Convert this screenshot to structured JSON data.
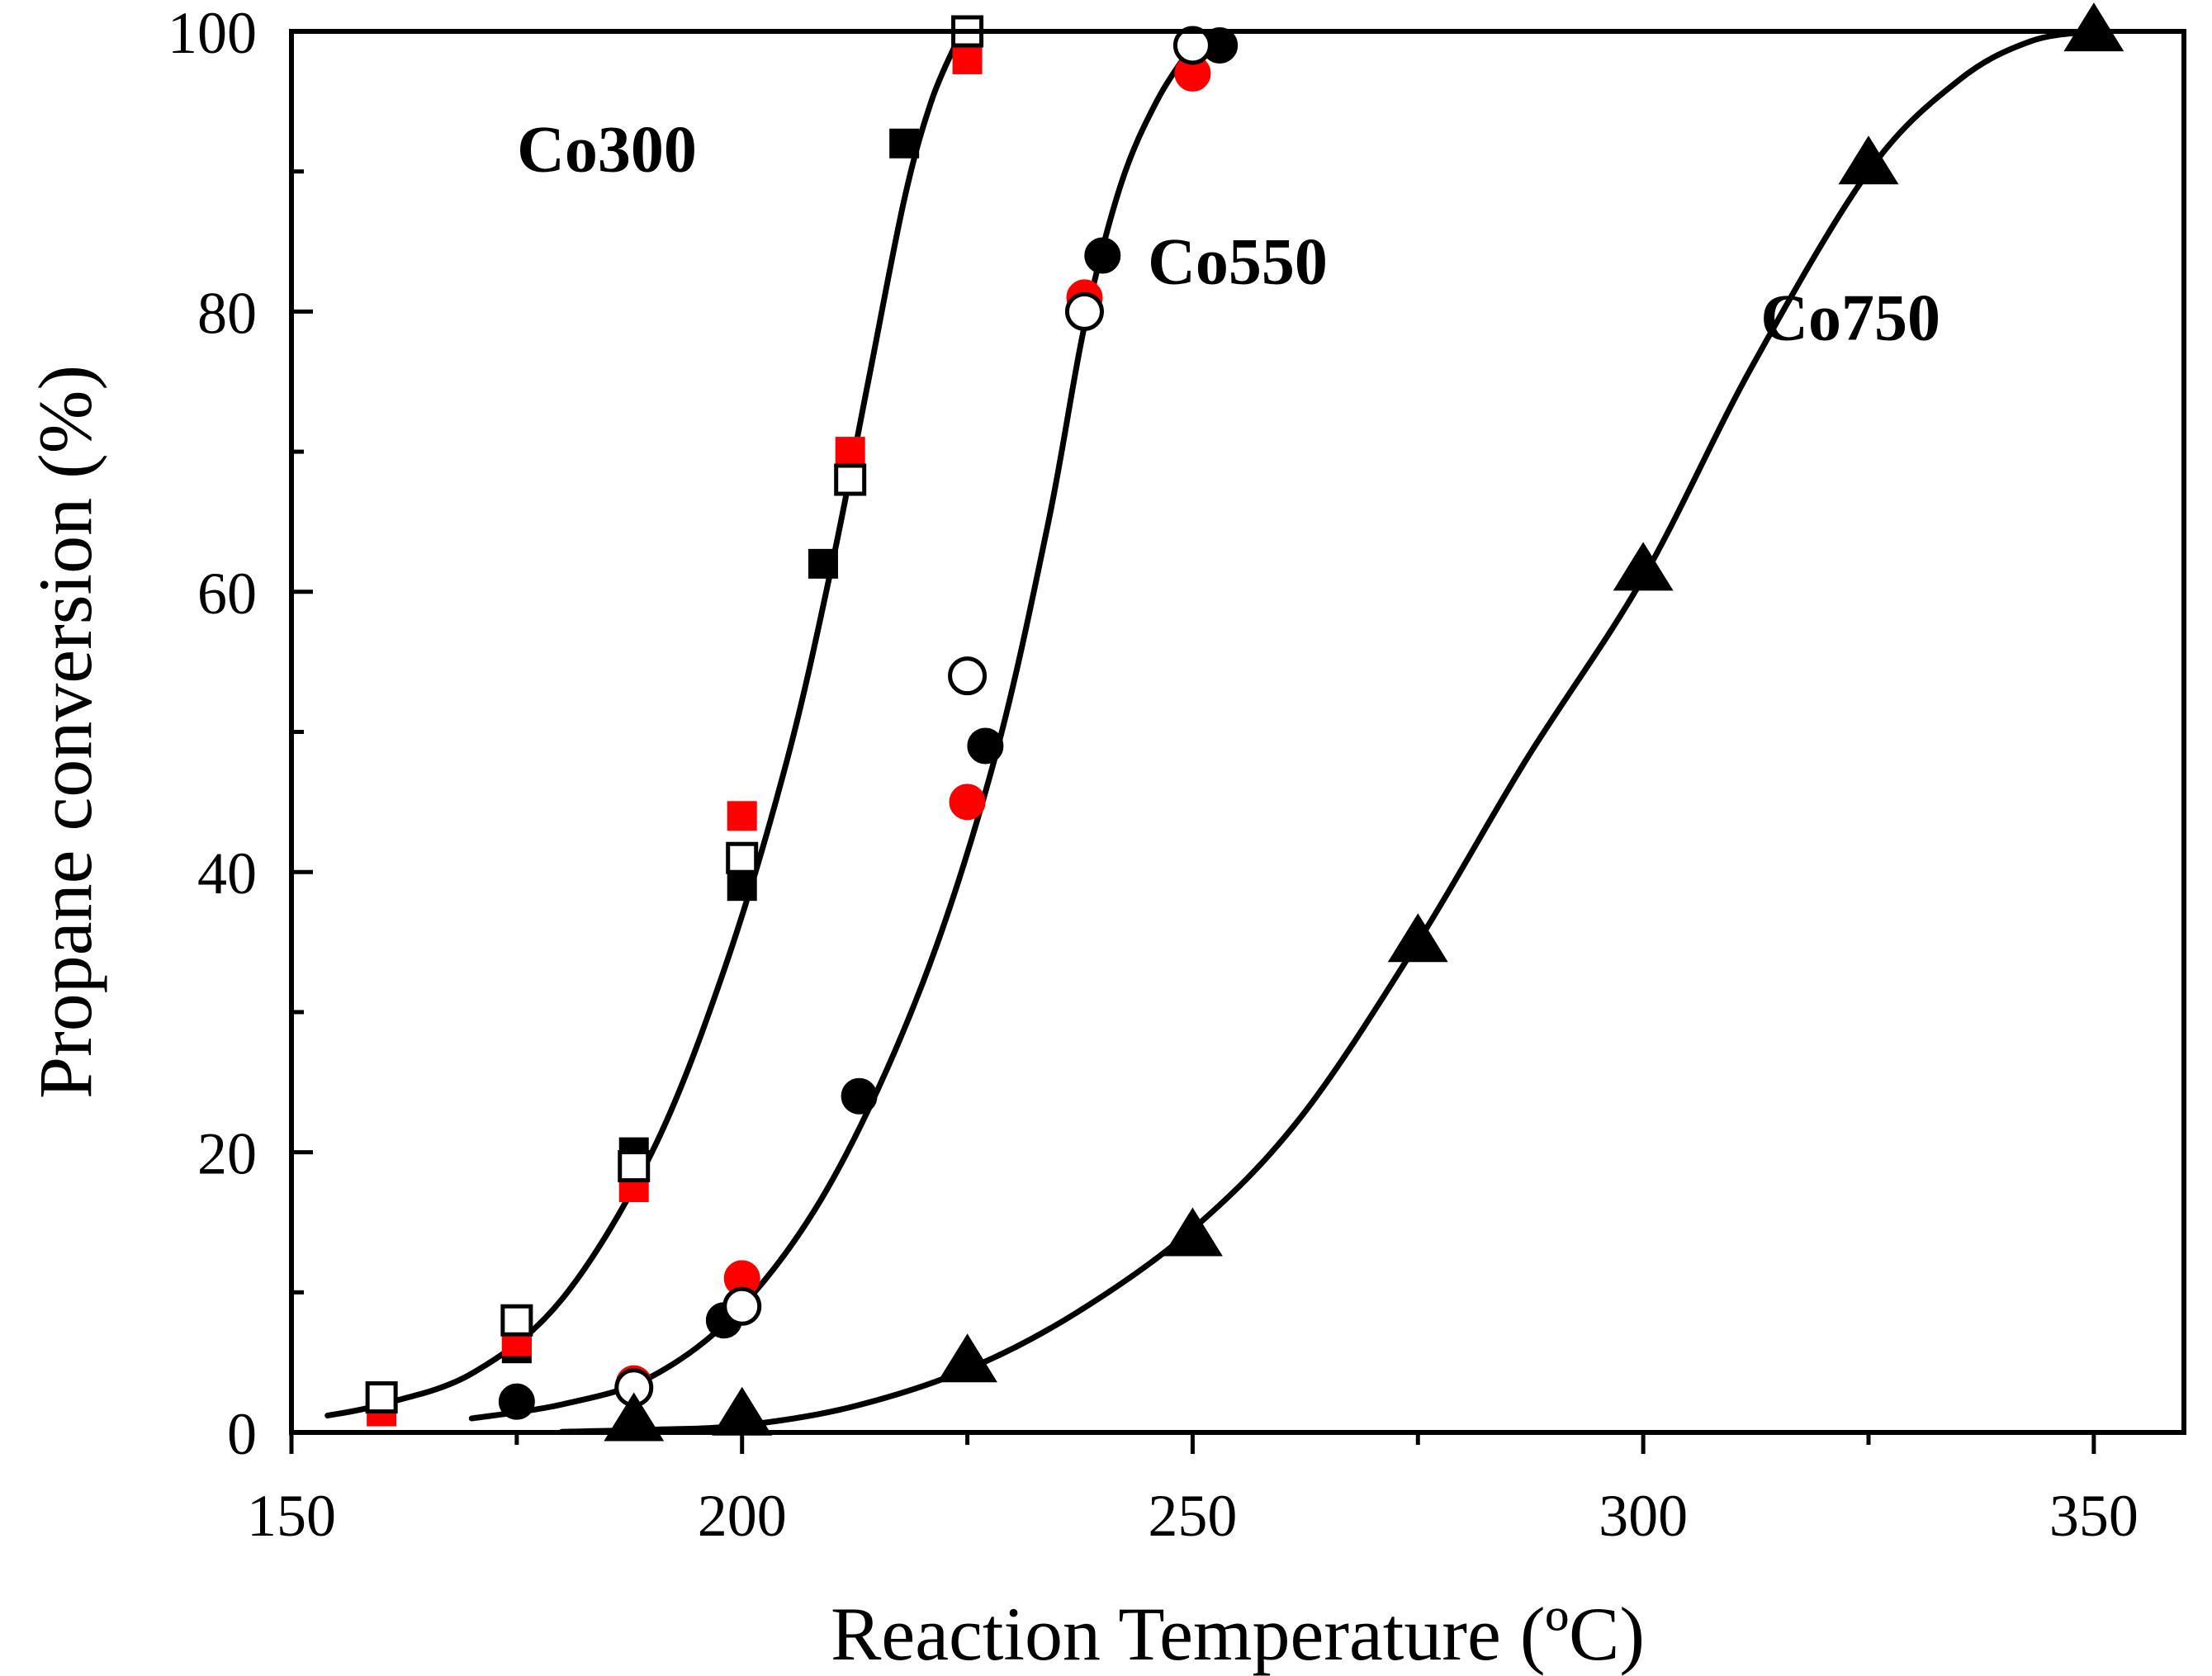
{
  "chart_data": {
    "type": "scatter",
    "title": "",
    "xlabel": "Reaction Temperature (ºC)",
    "ylabel": "Propane conversion (%)",
    "xlim": [
      150,
      360
    ],
    "ylim": [
      0,
      100
    ],
    "x_ticks": [
      150,
      200,
      250,
      300,
      350
    ],
    "y_ticks": [
      0,
      20,
      40,
      60,
      80,
      100
    ],
    "x_minor_ticks": [
      175,
      225,
      275,
      325
    ],
    "y_minor_ticks": [
      10,
      30,
      50,
      70,
      90
    ],
    "grid": false,
    "colors": {
      "black": "#000000",
      "red": "#ff0000",
      "white": "#ffffff"
    },
    "series_labels": [
      {
        "text": "Co300",
        "x": 185,
        "y": 90
      },
      {
        "text": "Co550",
        "x": 255,
        "y": 82
      },
      {
        "text": "Co750",
        "x": 323,
        "y": 78
      }
    ],
    "series": [
      {
        "name": "Co300 (filled black square)",
        "marker": "square",
        "fill": "#000000",
        "stroke": "#000000",
        "points": [
          [
            175,
            6
          ],
          [
            188,
            20
          ],
          [
            200,
            39
          ],
          [
            209,
            62
          ],
          [
            218,
            92
          ]
        ]
      },
      {
        "name": "Co300 (red square)",
        "marker": "square",
        "fill": "#ff0000",
        "stroke": "#ff0000",
        "points": [
          [
            160,
            1.5
          ],
          [
            175,
            6.5
          ],
          [
            188,
            17.5
          ],
          [
            200,
            44
          ],
          [
            212,
            70
          ],
          [
            225,
            98
          ]
        ]
      },
      {
        "name": "Co300 (open square)",
        "marker": "square",
        "fill": "#ffffff",
        "stroke": "#000000",
        "points": [
          [
            160,
            2.5
          ],
          [
            175,
            8
          ],
          [
            188,
            19
          ],
          [
            200,
            41
          ],
          [
            212,
            68
          ],
          [
            225,
            100
          ]
        ]
      },
      {
        "name": "Co550 (filled black circle)",
        "marker": "circle",
        "fill": "#000000",
        "stroke": "#000000",
        "points": [
          [
            175,
            2.2
          ],
          [
            198,
            8
          ],
          [
            213,
            24
          ],
          [
            227,
            49
          ],
          [
            240,
            84
          ],
          [
            253,
            99
          ]
        ]
      },
      {
        "name": "Co550 (red circle)",
        "marker": "circle",
        "fill": "#ff0000",
        "stroke": "#ff0000",
        "points": [
          [
            188,
            3.5
          ],
          [
            200,
            11
          ],
          [
            225,
            45
          ],
          [
            238,
            81
          ],
          [
            250,
            97
          ]
        ]
      },
      {
        "name": "Co550 (open circle)",
        "marker": "circle",
        "fill": "#ffffff",
        "stroke": "#000000",
        "points": [
          [
            188,
            3.2
          ],
          [
            200,
            9
          ],
          [
            225,
            54
          ],
          [
            238,
            80
          ],
          [
            250,
            99
          ]
        ]
      },
      {
        "name": "Co750 (filled black triangle)",
        "marker": "triangle",
        "fill": "#000000",
        "stroke": "#000000",
        "points": [
          [
            188,
            0.8
          ],
          [
            200,
            1.2
          ],
          [
            225,
            5
          ],
          [
            250,
            14
          ],
          [
            275,
            35
          ],
          [
            300,
            61.5
          ],
          [
            325,
            90.5
          ],
          [
            350,
            100
          ]
        ]
      }
    ],
    "fit_curves": [
      {
        "name": "Co300 fit",
        "points": [
          [
            154,
            1.2
          ],
          [
            160,
            2
          ],
          [
            170,
            4.2
          ],
          [
            180,
            9.5
          ],
          [
            190,
            20
          ],
          [
            198,
            33
          ],
          [
            205,
            48
          ],
          [
            210,
            62
          ],
          [
            214,
            75
          ],
          [
            218,
            88
          ],
          [
            221,
            95
          ],
          [
            224,
            99.5
          ]
        ]
      },
      {
        "name": "Co550 fit",
        "points": [
          [
            170,
            1
          ],
          [
            180,
            2
          ],
          [
            190,
            4
          ],
          [
            200,
            9
          ],
          [
            210,
            18
          ],
          [
            220,
            32
          ],
          [
            228,
            48
          ],
          [
            234,
            65
          ],
          [
            238,
            79
          ],
          [
            242,
            89
          ],
          [
            246,
            95
          ],
          [
            250,
            99
          ]
        ]
      },
      {
        "name": "Co750 fit",
        "points": [
          [
            180,
            0.05
          ],
          [
            190,
            0.2
          ],
          [
            200,
            0.5
          ],
          [
            212,
            1.8
          ],
          [
            225,
            4.5
          ],
          [
            237,
            8.5
          ],
          [
            250,
            14.5
          ],
          [
            262,
            22.5
          ],
          [
            275,
            35
          ],
          [
            287,
            48
          ],
          [
            300,
            61
          ],
          [
            312,
            76
          ],
          [
            325,
            90
          ],
          [
            335,
            96.5
          ],
          [
            343,
            99.3
          ],
          [
            350,
            100
          ]
        ]
      }
    ]
  }
}
